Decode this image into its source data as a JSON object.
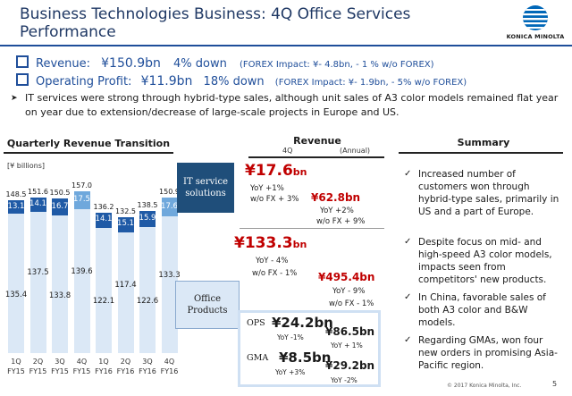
{
  "header": {
    "title": "Business Technologies Business: 4Q Office Services Performance",
    "logo_text": "KONICA MINOLTA",
    "logo_colors": [
      "#0067b8",
      "#ffffff"
    ]
  },
  "headline": {
    "revenue_label": "Revenue:",
    "revenue_value": "¥150.9bn",
    "revenue_change": "4% down",
    "revenue_fx": "(FOREX Impact: ¥- 4.8bn, - 1 % w/o FOREX)",
    "op_label": "Operating Profit:",
    "op_value": "¥11.9bn",
    "op_change": "18% down",
    "op_fx": "(FOREX Impact: ¥- 1.9bn, - 5% w/o FOREX)"
  },
  "explanation": "IT services were strong through hybrid-type sales, although unit sales of A3 color models remained flat year on year due to extension/decrease of large-scale projects in Europe and US.",
  "chart": {
    "heading": "Quarterly Revenue Transition",
    "unit": "[¥ billions]"
  },
  "chart_data": {
    "type": "bar",
    "stacked": true,
    "categories": [
      "1Q FY15",
      "2Q FY15",
      "3Q FY15",
      "4Q FY15",
      "1Q FY16",
      "2Q FY16",
      "3Q FY16",
      "4Q FY16"
    ],
    "tick_lines": [
      [
        "1Q",
        "FY15"
      ],
      [
        "2Q",
        "FY15"
      ],
      [
        "3Q",
        "FY15"
      ],
      [
        "4Q",
        "FY15"
      ],
      [
        "1Q",
        "FY16"
      ],
      [
        "2Q",
        "FY16"
      ],
      [
        "3Q",
        "FY16"
      ],
      [
        "4Q",
        "FY16"
      ]
    ],
    "series": [
      {
        "name": "Office Products",
        "values": [
          135.4,
          137.5,
          133.8,
          139.6,
          122.1,
          117.4,
          122.6,
          133.3
        ],
        "color": "#dbe8f6"
      },
      {
        "name": "IT service solutions",
        "values": [
          13.1,
          14.1,
          16.7,
          17.5,
          14.1,
          15.1,
          15.9,
          17.6
        ],
        "color": "#1f5aa6"
      }
    ],
    "totals": [
      148.5,
      151.6,
      150.5,
      157.0,
      136.2,
      132.5,
      138.5,
      150.9
    ],
    "total_labels": [
      "148.5",
      "151.6",
      "150.5",
      "157.0",
      "136.2",
      "132.5",
      "138.5",
      "150.9"
    ],
    "highlight_colors": [
      "#6fa8dc",
      "#1f5aa6"
    ]
  },
  "revenue": {
    "heading": "Revenue",
    "col_4q": "4Q",
    "col_annual": "(Annual)",
    "it": {
      "label": "IT service solutions",
      "q_value": "¥17.6",
      "q_unit": "bn",
      "q_yoy": "YoY +1%",
      "q_fx": "w/o FX + 3%",
      "a_value": "¥62.8bn",
      "a_yoy": "YoY +2%",
      "a_fx": "w/o FX + 9%"
    },
    "office": {
      "label": "Office Products",
      "q_value": "¥133.3",
      "q_unit": "bn",
      "q_yoy": "YoY - 4%",
      "q_fx": "w/o FX - 1%",
      "a_value": "¥495.4bn",
      "a_yoy": "YoY - 9%",
      "a_fx": "w/o FX - 1%"
    },
    "ops": {
      "label": "OPS",
      "q_value": "¥24.2bn",
      "q_yoy": "YoY -1%",
      "a_value": "¥86.5bn",
      "a_yoy": "YoY + 1%"
    },
    "gma": {
      "label": "GMA",
      "q_value": "¥8.5bn",
      "q_yoy": "YoY +3%",
      "a_value": "¥29.2bn",
      "a_yoy": "YoY -2%"
    }
  },
  "summary": {
    "heading": "Summary",
    "items": [
      "Increased number of customers won through hybrid-type sales, primarily in US and a part of Europe.",
      "Despite focus on mid- and high-speed A3 color models, impacts seen from competitors' new products.",
      "In China, favorable sales of both A3 color and B&W models.",
      "Regarding GMAs, won four new orders in promising Asia-Pacific region."
    ]
  },
  "footer": {
    "copyright": "© 2017 Konica Minolta, Inc.",
    "page": "5"
  }
}
